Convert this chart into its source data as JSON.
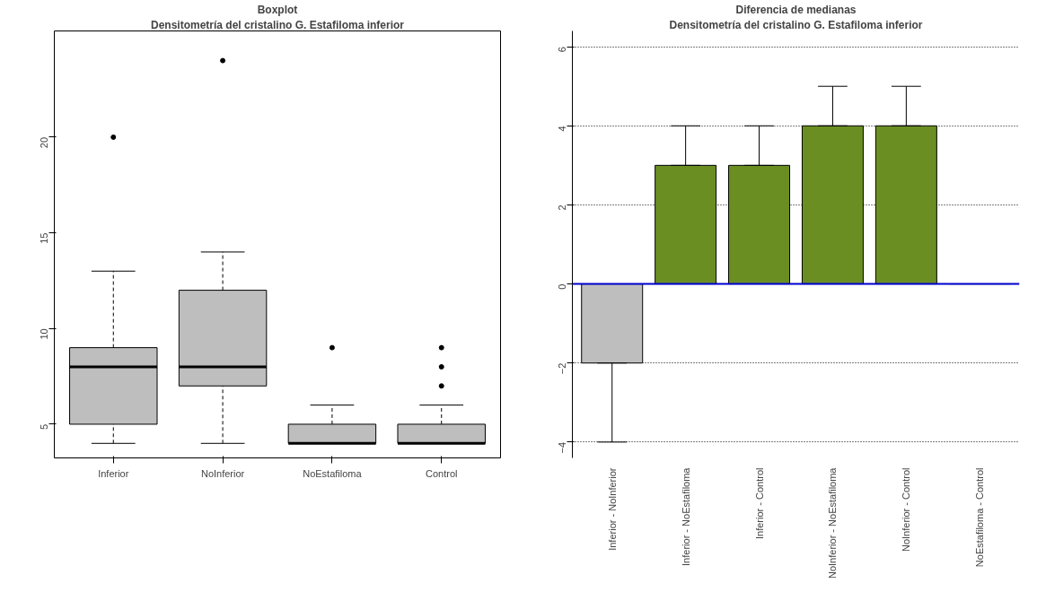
{
  "chart_data": [
    {
      "type": "box",
      "title": "Boxplot",
      "subtitle": "Densitometría del cristalino G. Estafiloma inferior",
      "categories": [
        "Inferior",
        "NoInferior",
        "NoEstafiloma",
        "Control"
      ],
      "color": "#bebebe",
      "boxes": [
        {
          "low": 4,
          "q1": 5,
          "median": 8,
          "q3": 9,
          "high": 13,
          "outliers": [
            20
          ]
        },
        {
          "low": 4,
          "q1": 7,
          "median": 8,
          "q3": 12,
          "high": 14,
          "outliers": [
            24
          ]
        },
        {
          "low": 4,
          "q1": 4,
          "median": 4,
          "q3": 5,
          "high": 6,
          "outliers": [
            9
          ]
        },
        {
          "low": 4,
          "q1": 4,
          "median": 4,
          "q3": 5,
          "high": 6,
          "outliers": [
            7,
            8,
            9
          ]
        }
      ],
      "ylim": [
        3.24,
        25.55
      ],
      "yticks": [
        5,
        10,
        15,
        20
      ],
      "grid": false
    },
    {
      "type": "bar",
      "title": "Diferencia de medianas",
      "subtitle": "Densitometría del cristalino G. Estafiloma inferior",
      "categories": [
        "Inferior - NoInferior",
        "Inferior - NoEstafiloma",
        "Inferior - Control",
        "NoInferior - NoEstafiloma",
        "NoInferior - Control",
        "NoEstafiloma - Control"
      ],
      "values": [
        -2,
        3,
        3,
        4,
        4,
        0
      ],
      "colors": [
        "#bebebe",
        "#6b8e23",
        "#6b8e23",
        "#6b8e23",
        "#6b8e23",
        "#000000"
      ],
      "errors": [
        [
          -4,
          -2
        ],
        [
          3,
          4
        ],
        [
          3,
          4
        ],
        [
          4,
          5
        ],
        [
          4,
          5
        ],
        null
      ],
      "ylim": [
        -4.4,
        6.4
      ],
      "yticks": [
        -4,
        -2,
        0,
        2,
        4,
        6
      ],
      "grid": "y",
      "ref_lines": [
        {
          "axis": "y",
          "value": 0,
          "color": "#0000cd"
        }
      ]
    }
  ]
}
